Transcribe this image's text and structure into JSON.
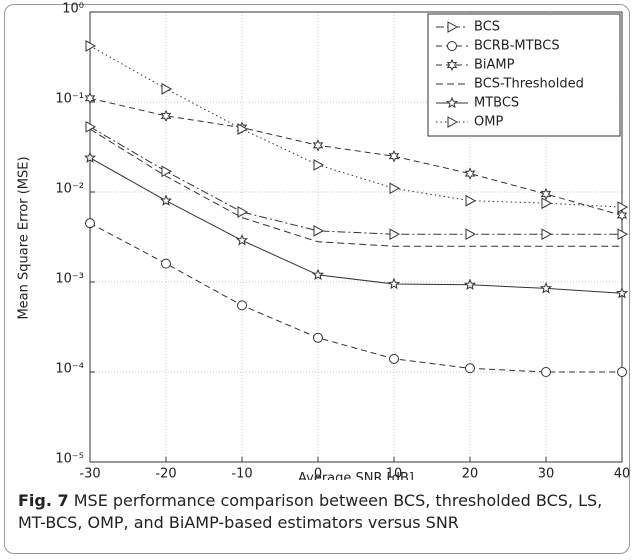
{
  "chart_data": {
    "type": "line",
    "xlabel": "Average SNR [dB]",
    "ylabel": "Mean Square Error (MSE)",
    "x": [
      -30,
      -20,
      -10,
      0,
      10,
      20,
      30,
      40
    ],
    "xlim": [
      -30,
      40
    ],
    "xticks": [
      -30,
      -20,
      -10,
      0,
      10,
      20,
      30,
      40
    ],
    "ylim": [
      1e-05,
      1
    ],
    "log_y": true,
    "yticks": [
      {
        "value": 1,
        "label": "10⁰"
      },
      {
        "value": 0.1,
        "label": "10⁻¹"
      },
      {
        "value": 0.01,
        "label": "10⁻²"
      },
      {
        "value": 0.001,
        "label": "10⁻³"
      },
      {
        "value": 0.0001,
        "label": "10⁻⁴"
      },
      {
        "value": 1e-05,
        "label": "10⁻⁵"
      }
    ],
    "grid": true,
    "legend": "upper right",
    "series": [
      {
        "name": "BCS",
        "color": "#333333",
        "values": [
          0.053,
          0.017,
          0.006,
          0.0037,
          0.0034,
          0.0034,
          0.0034,
          0.0034
        ]
      },
      {
        "name": "BCRB-MTBCS",
        "color": "#333333",
        "values": [
          0.0045,
          0.0016,
          0.00055,
          0.00024,
          0.00014,
          0.00011,
          0.0001,
          0.0001
        ]
      },
      {
        "name": "BiAMP",
        "color": "#333333",
        "values": [
          0.11,
          0.07,
          0.052,
          0.033,
          0.025,
          0.016,
          0.0095,
          0.0055
        ]
      },
      {
        "name": "BCS-Thresholded",
        "color": "#333333",
        "values": [
          0.05,
          0.015,
          0.0052,
          0.0028,
          0.0025,
          0.0025,
          0.0025,
          0.0025
        ]
      },
      {
        "name": "MTBCS",
        "color": "#333333",
        "values": [
          0.024,
          0.008,
          0.0029,
          0.0012,
          0.00095,
          0.00093,
          0.00085,
          0.00075
        ]
      },
      {
        "name": "OMP",
        "color": "#333333",
        "values": [
          0.42,
          0.14,
          0.05,
          0.02,
          0.011,
          0.008,
          0.0075,
          0.0068
        ]
      }
    ]
  },
  "caption": {
    "label": "Fig. 7",
    "text": " MSE performance comparison between BCS, thresholded BCS, LS, MT-BCS, OMP, and BiAMP-based estimators versus SNR"
  }
}
